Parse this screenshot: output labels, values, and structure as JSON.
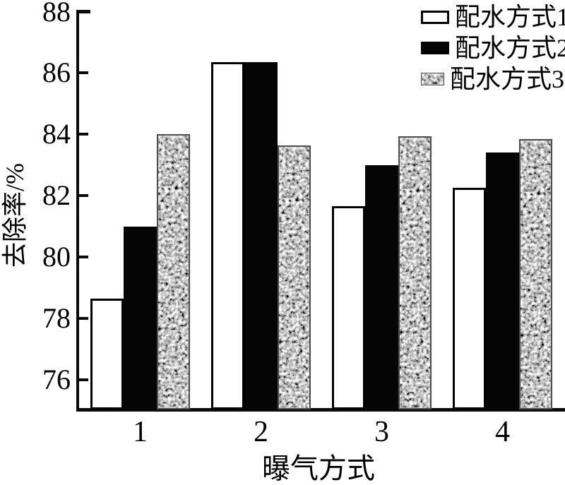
{
  "chart_data": {
    "type": "bar",
    "title": "",
    "xlabel": "曝气方式",
    "ylabel": "去除率/%",
    "categories": [
      "1",
      "2",
      "3",
      "4"
    ],
    "series": [
      {
        "name": "配水方式1",
        "style": "white",
        "values": [
          78.65,
          86.35,
          81.65,
          82.25
        ]
      },
      {
        "name": "配水方式2",
        "style": "black",
        "values": [
          81.0,
          86.35,
          83.0,
          83.4
        ]
      },
      {
        "name": "配水方式3",
        "style": "speckle",
        "values": [
          84.0,
          83.65,
          83.95,
          83.85
        ]
      }
    ],
    "ylim": [
      75.1,
      88.1
    ],
    "yticks": [
      76,
      78,
      80,
      82,
      84,
      86,
      88
    ],
    "grid": false,
    "legend_position": "top-right",
    "colors": {
      "text": "#000000",
      "axis": "#0a0a0a",
      "bar_outline": "#000000",
      "bar_black": "#050505",
      "speckle_base": "#8a8a8a"
    }
  }
}
